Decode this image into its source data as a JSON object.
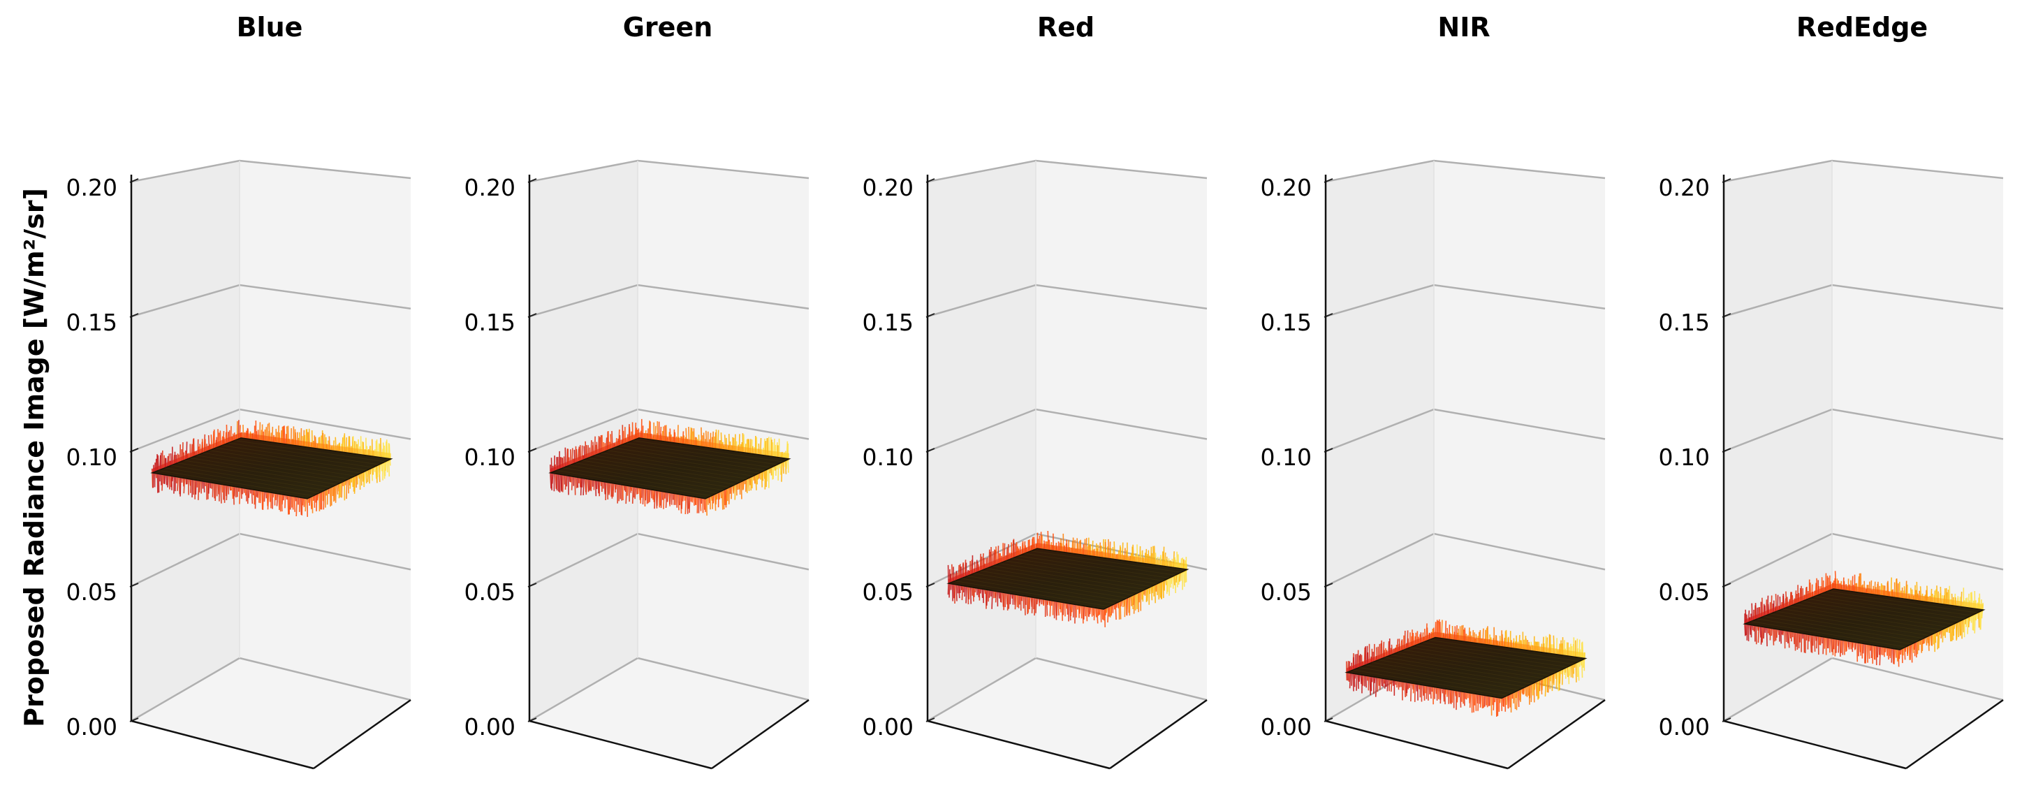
{
  "figure": {
    "ylabel": "Proposed Radiance Image [W/m²/sr]"
  },
  "chart_data": [
    {
      "type": "surface3d",
      "title": "Blue",
      "zlabel": "Proposed Radiance Image [W/m²/sr]",
      "zlim": [
        0,
        0.2
      ],
      "zticks": [
        "0.00",
        "0.05",
        "0.10",
        "0.15",
        "0.20"
      ],
      "surface_mean": 0.092,
      "colormap": "hot"
    },
    {
      "type": "surface3d",
      "title": "Green",
      "zlabel": "",
      "zlim": [
        0,
        0.2
      ],
      "zticks": [
        "0.00",
        "0.05",
        "0.10",
        "0.15",
        "0.20"
      ],
      "surface_mean": 0.092,
      "colormap": "hot"
    },
    {
      "type": "surface3d",
      "title": "Red",
      "zlabel": "",
      "zlim": [
        0,
        0.2
      ],
      "zticks": [
        "0.00",
        "0.05",
        "0.10",
        "0.15",
        "0.20"
      ],
      "surface_mean": 0.051,
      "colormap": "hot"
    },
    {
      "type": "surface3d",
      "title": "NIR",
      "zlabel": "",
      "zlim": [
        0,
        0.2
      ],
      "zticks": [
        "0.00",
        "0.05",
        "0.10",
        "0.15",
        "0.20"
      ],
      "surface_mean": 0.018,
      "colormap": "hot"
    },
    {
      "type": "surface3d",
      "title": "RedEdge",
      "zlabel": "",
      "zlim": [
        0,
        0.2
      ],
      "zticks": [
        "0.00",
        "0.05",
        "0.10",
        "0.15",
        "0.20"
      ],
      "surface_mean": 0.036,
      "colormap": "hot"
    }
  ]
}
